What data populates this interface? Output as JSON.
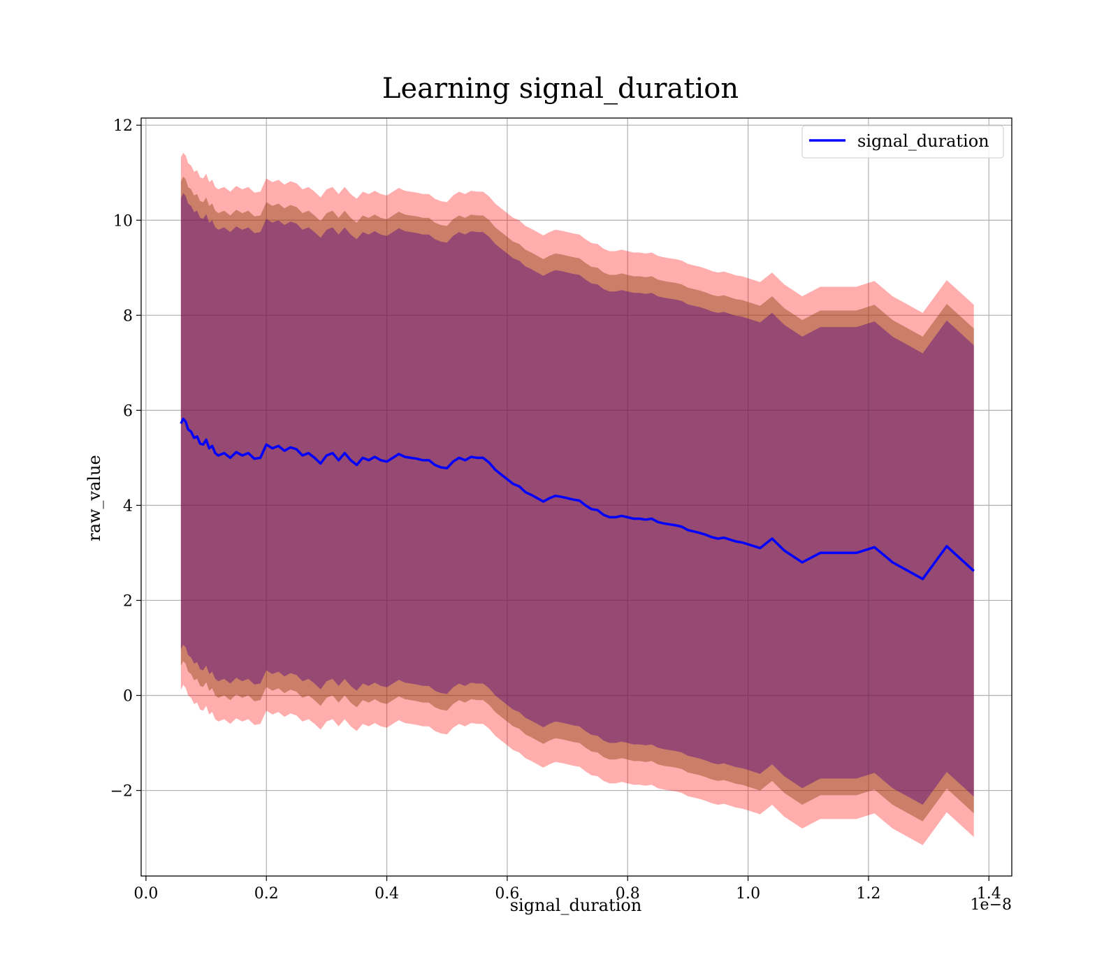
{
  "chart_data": {
    "type": "line",
    "title": "Learning signal_duration",
    "xlabel": "signal_duration",
    "ylabel": "raw_value",
    "x_offset_label": "1e−8",
    "xlim": [
      -0.008,
      1.438
    ],
    "ylim": [
      -3.8,
      12.15
    ],
    "x_ticks": [
      0.0,
      0.2,
      0.4,
      0.6,
      0.8,
      1.0,
      1.2,
      1.4
    ],
    "x_tick_labels": [
      "0.0",
      "0.2",
      "0.4",
      "0.6",
      "0.8",
      "1.0",
      "1.2",
      "1.4"
    ],
    "y_ticks": [
      -2,
      0,
      2,
      4,
      6,
      8,
      10,
      12
    ],
    "y_tick_labels": [
      "−2",
      "0",
      "2",
      "4",
      "6",
      "8",
      "10",
      "12"
    ],
    "grid": true,
    "legend": {
      "position": "top-right",
      "entries": [
        "signal_duration"
      ]
    },
    "colors": {
      "line": "#0000ff",
      "band_outer": "#ff0000",
      "band_middle": "#8b4513",
      "band_inner": "#4b0082"
    },
    "band_half_widths": {
      "outer": 5.6,
      "middle": 5.1,
      "inner": 4.75
    },
    "series": [
      {
        "name": "signal_duration",
        "x": [
          0.058,
          0.062,
          0.066,
          0.07,
          0.075,
          0.08,
          0.085,
          0.09,
          0.095,
          0.1,
          0.105,
          0.11,
          0.115,
          0.12,
          0.13,
          0.14,
          0.15,
          0.16,
          0.17,
          0.18,
          0.19,
          0.2,
          0.21,
          0.22,
          0.23,
          0.24,
          0.25,
          0.26,
          0.27,
          0.28,
          0.29,
          0.3,
          0.31,
          0.32,
          0.33,
          0.34,
          0.35,
          0.36,
          0.37,
          0.38,
          0.39,
          0.4,
          0.41,
          0.42,
          0.43,
          0.44,
          0.45,
          0.46,
          0.47,
          0.48,
          0.49,
          0.5,
          0.51,
          0.52,
          0.53,
          0.54,
          0.55,
          0.56,
          0.57,
          0.58,
          0.59,
          0.6,
          0.61,
          0.62,
          0.63,
          0.64,
          0.65,
          0.66,
          0.67,
          0.68,
          0.69,
          0.7,
          0.71,
          0.72,
          0.73,
          0.74,
          0.75,
          0.76,
          0.77,
          0.78,
          0.79,
          0.8,
          0.81,
          0.82,
          0.83,
          0.84,
          0.85,
          0.86,
          0.87,
          0.88,
          0.89,
          0.9,
          0.91,
          0.92,
          0.93,
          0.94,
          0.95,
          0.96,
          0.97,
          0.98,
          0.99,
          1.0,
          1.02,
          1.04,
          1.06,
          1.09,
          1.12,
          1.18,
          1.21,
          1.24,
          1.29,
          1.33,
          1.375
        ],
        "values": [
          5.72,
          5.82,
          5.76,
          5.6,
          5.55,
          5.42,
          5.45,
          5.3,
          5.28,
          5.38,
          5.2,
          5.25,
          5.1,
          5.05,
          5.1,
          5.0,
          5.12,
          5.05,
          5.1,
          4.98,
          5.0,
          5.28,
          5.2,
          5.25,
          5.15,
          5.22,
          5.18,
          5.05,
          5.1,
          5.0,
          4.88,
          5.05,
          5.1,
          4.95,
          5.1,
          4.95,
          4.85,
          5.0,
          4.95,
          5.02,
          4.95,
          4.92,
          5.0,
          5.08,
          5.02,
          5.0,
          4.98,
          4.95,
          4.95,
          4.85,
          4.8,
          4.78,
          4.92,
          5.0,
          4.95,
          5.02,
          5.0,
          5.0,
          4.9,
          4.75,
          4.65,
          4.55,
          4.45,
          4.4,
          4.28,
          4.22,
          4.15,
          4.08,
          4.15,
          4.2,
          4.18,
          4.15,
          4.12,
          4.1,
          4.0,
          3.92,
          3.9,
          3.8,
          3.75,
          3.75,
          3.78,
          3.75,
          3.72,
          3.72,
          3.7,
          3.72,
          3.65,
          3.62,
          3.6,
          3.58,
          3.55,
          3.48,
          3.45,
          3.42,
          3.38,
          3.33,
          3.3,
          3.32,
          3.28,
          3.24,
          3.22,
          3.18,
          3.1,
          3.3,
          3.05,
          2.8,
          3.0,
          3.0,
          3.12,
          2.8,
          2.45,
          3.14,
          2.62
        ]
      }
    ]
  }
}
